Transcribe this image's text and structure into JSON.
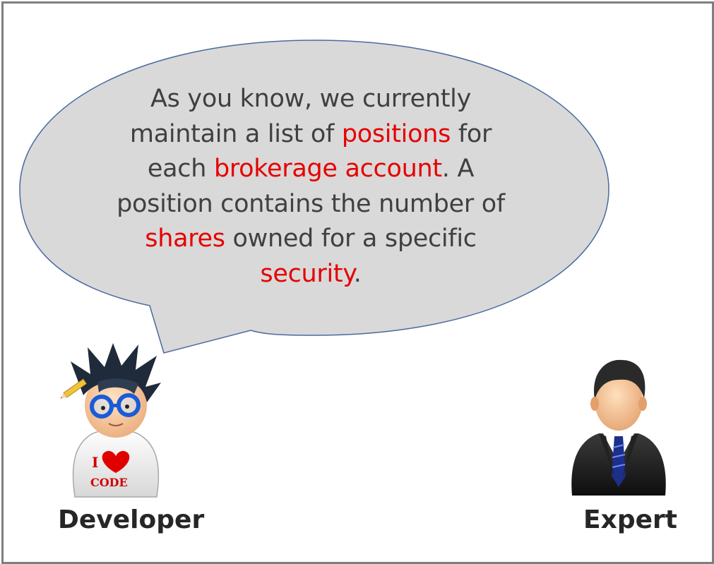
{
  "speech": {
    "line1": "As you know, we currently",
    "line2_pre": "maintain a list of ",
    "line2_hl": "positions",
    "line2_post": " for",
    "line3_pre": "each ",
    "line3_hl": "brokerage account",
    "line3_post": ". A",
    "line4": "position contains the number of",
    "line5_hl": "shares",
    "line5_post": " owned for a specific",
    "line6_hl": "security",
    "line6_post": "."
  },
  "developer": {
    "label": "Developer",
    "shirt_line1": "I",
    "shirt_line2": "CODE"
  },
  "expert": {
    "label": "Expert"
  },
  "colors": {
    "bubble_fill": "#d9d9d9",
    "bubble_stroke": "#4a6aa0",
    "highlight": "#e60000",
    "text": "#404040",
    "frame": "#7f7f7f"
  }
}
